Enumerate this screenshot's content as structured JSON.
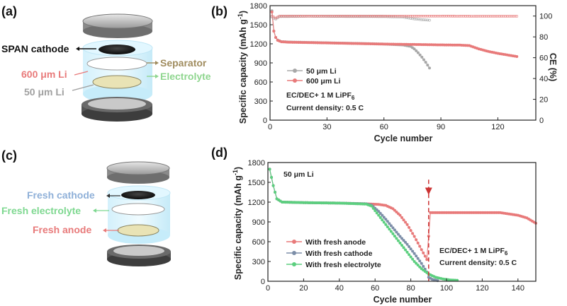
{
  "colors": {
    "red": "#e87a7a",
    "gray": "#a8a8a8",
    "green": "#5ccf7f",
    "blue_gray": "#7d8ea8",
    "separator": "#a08c5e",
    "electrolyte": "#8fd68f",
    "li600": "#e87a7a",
    "li50": "#a0a0a0",
    "fresh_cathode": "#8fb0d8",
    "fresh_electrolyte": "#7ed890",
    "fresh_anode": "#e87a7a",
    "dashed_marker": "#cc3333"
  },
  "diagram_a": {
    "panel_label": "(a)",
    "labels": {
      "cathode": "SPAN cathode",
      "separator": "Separator",
      "li600": "600 μm Li",
      "electrolyte": "Electrolyte",
      "li50": "50 μm Li"
    }
  },
  "diagram_c": {
    "panel_label": "(c)",
    "labels": {
      "cathode": "Fresh cathode",
      "electrolyte": "Fresh electrolyte",
      "anode": "Fresh anode"
    }
  },
  "chart_data": [
    {
      "panel_label": "(b)",
      "type": "scatter",
      "xlabel": "Cycle number",
      "ylabel": "Specific capacity (mAh g",
      "ylabel_sup": "-1",
      "y2label": "CE (%)",
      "xlim": [
        0,
        140
      ],
      "ylim": [
        0,
        1800
      ],
      "y2lim": [
        0,
        110
      ],
      "xticks": [
        "0",
        "30",
        "60",
        "90",
        "120"
      ],
      "yticks": [
        "0",
        "300",
        "600",
        "900",
        "1200",
        "1500",
        "1800"
      ],
      "y2ticks": [
        "0",
        "20",
        "40",
        "60",
        "80",
        "100"
      ],
      "legend": [
        {
          "name": "50 μm Li",
          "color": "gray"
        },
        {
          "name": "600 μm Li",
          "color": "red"
        }
      ],
      "annotation_line1": "EC/DEC+ 1 M LiPF",
      "annotation_line1_sub": "6",
      "annotation_line2": "Current density: 0.5 C",
      "series": [
        {
          "name": "50 μm Li",
          "color": "gray",
          "axis": "left",
          "points": [
            [
              1,
              1720
            ],
            [
              2,
              1400
            ],
            [
              3,
              1300
            ],
            [
              4,
              1260
            ],
            [
              6,
              1235
            ],
            [
              10,
              1228
            ],
            [
              20,
              1222
            ],
            [
              30,
              1216
            ],
            [
              40,
              1210
            ],
            [
              50,
              1204
            ],
            [
              60,
              1196
            ],
            [
              70,
              1182
            ],
            [
              74,
              1160
            ],
            [
              76,
              1120
            ],
            [
              78,
              1060
            ],
            [
              80,
              990
            ],
            [
              82,
              910
            ],
            [
              84,
              820
            ]
          ]
        },
        {
          "name": "600 μm Li",
          "color": "red",
          "axis": "left",
          "points": [
            [
              1,
              1700
            ],
            [
              2,
              1400
            ],
            [
              3,
              1300
            ],
            [
              4,
              1255
            ],
            [
              6,
              1232
            ],
            [
              10,
              1225
            ],
            [
              20,
              1220
            ],
            [
              30,
              1214
            ],
            [
              40,
              1208
            ],
            [
              50,
              1202
            ],
            [
              60,
              1196
            ],
            [
              70,
              1192
            ],
            [
              80,
              1188
            ],
            [
              90,
              1183
            ],
            [
              100,
              1180
            ],
            [
              105,
              1172
            ],
            [
              110,
              1120
            ],
            [
              115,
              1080
            ],
            [
              120,
              1050
            ],
            [
              125,
              1025
            ],
            [
              130,
              1000
            ]
          ]
        },
        {
          "name": "50 μm Li CE",
          "color": "gray",
          "axis": "right",
          "points": [
            [
              1,
              99
            ],
            [
              3,
              97
            ],
            [
              5,
              99.5
            ],
            [
              20,
              99.8
            ],
            [
              40,
              99.6
            ],
            [
              60,
              99.5
            ],
            [
              70,
              99.0
            ],
            [
              75,
              97.5
            ],
            [
              80,
              96.5
            ],
            [
              84,
              96
            ]
          ]
        },
        {
          "name": "600 μm Li CE",
          "color": "red",
          "axis": "right",
          "points": [
            [
              1,
              100
            ],
            [
              3,
              98
            ],
            [
              5,
              100
            ],
            [
              30,
              100
            ],
            [
              60,
              100
            ],
            [
              90,
              100
            ],
            [
              110,
              99.8
            ],
            [
              130,
              99.8
            ]
          ]
        }
      ]
    },
    {
      "panel_label": "(d)",
      "type": "scatter",
      "xlabel": "Cycle number",
      "ylabel": "Specific capacity (mAh g",
      "ylabel_sup": "-1",
      "xlim": [
        0,
        150
      ],
      "ylim": [
        0,
        1800
      ],
      "xticks": [
        "0",
        "20",
        "40",
        "60",
        "80",
        "100",
        "120",
        "140"
      ],
      "yticks": [
        "0",
        "300",
        "600",
        "900",
        "1200",
        "1500",
        "1800"
      ],
      "title_inside": "50 μm Li",
      "marker_x": 90,
      "legend": [
        {
          "name": "With fresh anode",
          "color": "red"
        },
        {
          "name": "With fresh cathode",
          "color": "blue_gray"
        },
        {
          "name": "With fresh electrolyte",
          "color": "green"
        }
      ],
      "annotation_line1": "EC/DEC+ 1 M LiPF",
      "annotation_line1_sub": "6",
      "annotation_line2": "Current density: 0.5 C",
      "series": [
        {
          "name": "With fresh anode",
          "color": "red",
          "points": [
            [
              1,
              1700
            ],
            [
              3,
              1450
            ],
            [
              5,
              1250
            ],
            [
              8,
              1200
            ],
            [
              20,
              1192
            ],
            [
              40,
              1185
            ],
            [
              55,
              1175
            ],
            [
              62,
              1165
            ],
            [
              66,
              1150
            ],
            [
              70,
              1100
            ],
            [
              74,
              1000
            ],
            [
              78,
              860
            ],
            [
              82,
              680
            ],
            [
              86,
              480
            ],
            [
              89,
              330
            ],
            [
              91,
              1040
            ],
            [
              100,
              1040
            ],
            [
              110,
              1040
            ],
            [
              120,
              1040
            ],
            [
              130,
              1040
            ],
            [
              140,
              1000
            ],
            [
              145,
              960
            ],
            [
              150,
              880
            ]
          ]
        },
        {
          "name": "With fresh cathode",
          "color": "blue_gray",
          "points": [
            [
              1,
              1700
            ],
            [
              3,
              1450
            ],
            [
              5,
              1250
            ],
            [
              8,
              1200
            ],
            [
              20,
              1192
            ],
            [
              40,
              1185
            ],
            [
              55,
              1175
            ],
            [
              58,
              1155
            ],
            [
              62,
              1060
            ],
            [
              66,
              940
            ],
            [
              70,
              810
            ],
            [
              74,
              680
            ],
            [
              78,
              560
            ],
            [
              82,
              420
            ],
            [
              86,
              270
            ],
            [
              89,
              140
            ],
            [
              90,
              60
            ],
            [
              92,
              30
            ],
            [
              95,
              10
            ]
          ]
        },
        {
          "name": "With fresh electrolyte",
          "color": "green",
          "points": [
            [
              1,
              1700
            ],
            [
              3,
              1450
            ],
            [
              5,
              1250
            ],
            [
              8,
              1200
            ],
            [
              20,
              1192
            ],
            [
              40,
              1185
            ],
            [
              55,
              1170
            ],
            [
              58,
              1140
            ],
            [
              62,
              1000
            ],
            [
              66,
              860
            ],
            [
              70,
              720
            ],
            [
              74,
              580
            ],
            [
              78,
              440
            ],
            [
              82,
              300
            ],
            [
              86,
              190
            ],
            [
              90,
              110
            ],
            [
              94,
              60
            ],
            [
              98,
              35
            ],
            [
              102,
              20
            ],
            [
              106,
              15
            ]
          ]
        }
      ]
    }
  ]
}
